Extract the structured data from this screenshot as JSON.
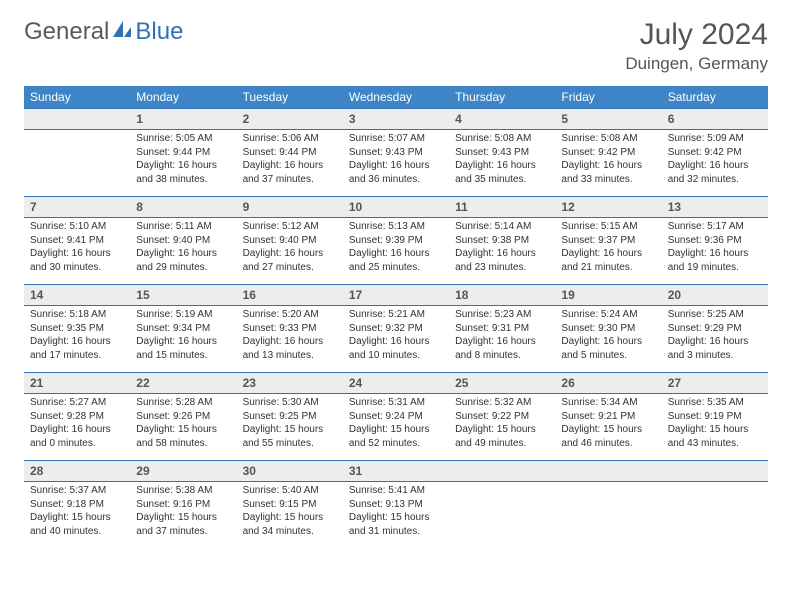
{
  "brand": {
    "part1": "General",
    "part2": "Blue"
  },
  "title": "July 2024",
  "location": "Duingen, Germany",
  "colors": {
    "header_bg": "#3d85c6",
    "header_text": "#ffffff",
    "rule": "#2f73b6",
    "daynum_bg": "#ededed",
    "text": "#333333",
    "brand_gray": "#555b61",
    "brand_blue": "#2f73b6"
  },
  "day_headers": [
    "Sunday",
    "Monday",
    "Tuesday",
    "Wednesday",
    "Thursday",
    "Friday",
    "Saturday"
  ],
  "weeks": [
    {
      "nums": [
        "",
        "1",
        "2",
        "3",
        "4",
        "5",
        "6"
      ],
      "cells": [
        [],
        [
          "Sunrise: 5:05 AM",
          "Sunset: 9:44 PM",
          "Daylight: 16 hours",
          "and 38 minutes."
        ],
        [
          "Sunrise: 5:06 AM",
          "Sunset: 9:44 PM",
          "Daylight: 16 hours",
          "and 37 minutes."
        ],
        [
          "Sunrise: 5:07 AM",
          "Sunset: 9:43 PM",
          "Daylight: 16 hours",
          "and 36 minutes."
        ],
        [
          "Sunrise: 5:08 AM",
          "Sunset: 9:43 PM",
          "Daylight: 16 hours",
          "and 35 minutes."
        ],
        [
          "Sunrise: 5:08 AM",
          "Sunset: 9:42 PM",
          "Daylight: 16 hours",
          "and 33 minutes."
        ],
        [
          "Sunrise: 5:09 AM",
          "Sunset: 9:42 PM",
          "Daylight: 16 hours",
          "and 32 minutes."
        ]
      ]
    },
    {
      "nums": [
        "7",
        "8",
        "9",
        "10",
        "11",
        "12",
        "13"
      ],
      "cells": [
        [
          "Sunrise: 5:10 AM",
          "Sunset: 9:41 PM",
          "Daylight: 16 hours",
          "and 30 minutes."
        ],
        [
          "Sunrise: 5:11 AM",
          "Sunset: 9:40 PM",
          "Daylight: 16 hours",
          "and 29 minutes."
        ],
        [
          "Sunrise: 5:12 AM",
          "Sunset: 9:40 PM",
          "Daylight: 16 hours",
          "and 27 minutes."
        ],
        [
          "Sunrise: 5:13 AM",
          "Sunset: 9:39 PM",
          "Daylight: 16 hours",
          "and 25 minutes."
        ],
        [
          "Sunrise: 5:14 AM",
          "Sunset: 9:38 PM",
          "Daylight: 16 hours",
          "and 23 minutes."
        ],
        [
          "Sunrise: 5:15 AM",
          "Sunset: 9:37 PM",
          "Daylight: 16 hours",
          "and 21 minutes."
        ],
        [
          "Sunrise: 5:17 AM",
          "Sunset: 9:36 PM",
          "Daylight: 16 hours",
          "and 19 minutes."
        ]
      ]
    },
    {
      "nums": [
        "14",
        "15",
        "16",
        "17",
        "18",
        "19",
        "20"
      ],
      "cells": [
        [
          "Sunrise: 5:18 AM",
          "Sunset: 9:35 PM",
          "Daylight: 16 hours",
          "and 17 minutes."
        ],
        [
          "Sunrise: 5:19 AM",
          "Sunset: 9:34 PM",
          "Daylight: 16 hours",
          "and 15 minutes."
        ],
        [
          "Sunrise: 5:20 AM",
          "Sunset: 9:33 PM",
          "Daylight: 16 hours",
          "and 13 minutes."
        ],
        [
          "Sunrise: 5:21 AM",
          "Sunset: 9:32 PM",
          "Daylight: 16 hours",
          "and 10 minutes."
        ],
        [
          "Sunrise: 5:23 AM",
          "Sunset: 9:31 PM",
          "Daylight: 16 hours",
          "and 8 minutes."
        ],
        [
          "Sunrise: 5:24 AM",
          "Sunset: 9:30 PM",
          "Daylight: 16 hours",
          "and 5 minutes."
        ],
        [
          "Sunrise: 5:25 AM",
          "Sunset: 9:29 PM",
          "Daylight: 16 hours",
          "and 3 minutes."
        ]
      ]
    },
    {
      "nums": [
        "21",
        "22",
        "23",
        "24",
        "25",
        "26",
        "27"
      ],
      "cells": [
        [
          "Sunrise: 5:27 AM",
          "Sunset: 9:28 PM",
          "Daylight: 16 hours",
          "and 0 minutes."
        ],
        [
          "Sunrise: 5:28 AM",
          "Sunset: 9:26 PM",
          "Daylight: 15 hours",
          "and 58 minutes."
        ],
        [
          "Sunrise: 5:30 AM",
          "Sunset: 9:25 PM",
          "Daylight: 15 hours",
          "and 55 minutes."
        ],
        [
          "Sunrise: 5:31 AM",
          "Sunset: 9:24 PM",
          "Daylight: 15 hours",
          "and 52 minutes."
        ],
        [
          "Sunrise: 5:32 AM",
          "Sunset: 9:22 PM",
          "Daylight: 15 hours",
          "and 49 minutes."
        ],
        [
          "Sunrise: 5:34 AM",
          "Sunset: 9:21 PM",
          "Daylight: 15 hours",
          "and 46 minutes."
        ],
        [
          "Sunrise: 5:35 AM",
          "Sunset: 9:19 PM",
          "Daylight: 15 hours",
          "and 43 minutes."
        ]
      ]
    },
    {
      "nums": [
        "28",
        "29",
        "30",
        "31",
        "",
        "",
        ""
      ],
      "cells": [
        [
          "Sunrise: 5:37 AM",
          "Sunset: 9:18 PM",
          "Daylight: 15 hours",
          "and 40 minutes."
        ],
        [
          "Sunrise: 5:38 AM",
          "Sunset: 9:16 PM",
          "Daylight: 15 hours",
          "and 37 minutes."
        ],
        [
          "Sunrise: 5:40 AM",
          "Sunset: 9:15 PM",
          "Daylight: 15 hours",
          "and 34 minutes."
        ],
        [
          "Sunrise: 5:41 AM",
          "Sunset: 9:13 PM",
          "Daylight: 15 hours",
          "and 31 minutes."
        ],
        [],
        [],
        []
      ]
    }
  ]
}
